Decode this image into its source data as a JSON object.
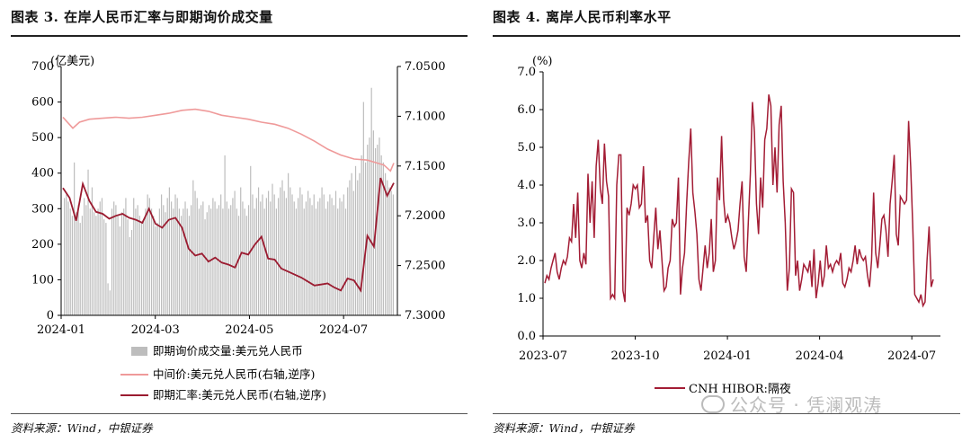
{
  "left": {
    "title": "图表 3.  在岸人民币汇率与即期询价成交量",
    "source": "资料来源：Wind，中银证券",
    "chart_data": {
      "type": "bar",
      "title": "在岸人民币汇率与即期询价成交量",
      "ylabel": "(亿美元)",
      "ylim": [
        0,
        700
      ],
      "y_ticks": [
        "0",
        "100",
        "200",
        "300",
        "400",
        "500",
        "600",
        "700"
      ],
      "y2lim": [
        7.05,
        7.3
      ],
      "y2_inverted": true,
      "y2_ticks": [
        "7.0500",
        "7.1000",
        "7.1500",
        "7.2000",
        "7.2500",
        "7.3000"
      ],
      "x_ticks": [
        "2024-01",
        "2024-03",
        "2024-05",
        "2024-07"
      ],
      "legend": [
        "即期询价成交量:美元兑人民币",
        "中间价:美元兑人民币(右轴,逆序)",
        "即期汇率:美元兑人民币(右轴,逆序)"
      ],
      "legend_position": "bottom",
      "colors": {
        "bars": "#bdbdbd",
        "mid": "#ef9a9a",
        "spot": "#9b1b30"
      },
      "series": [
        {
          "name": "即期询价成交量:美元兑人民币",
          "type": "bar",
          "axis": "left",
          "values": [
            330,
            340,
            320,
            300,
            280,
            430,
            290,
            310,
            260,
            280,
            330,
            310,
            410,
            300,
            360,
            290,
            280,
            300,
            320,
            330,
            270,
            260,
            90,
            70,
            300,
            320,
            310,
            280,
            250,
            290,
            300,
            330,
            270,
            220,
            240,
            330,
            300,
            310,
            280,
            260,
            270,
            300,
            340,
            330,
            300,
            280,
            250,
            260,
            300,
            340,
            310,
            290,
            330,
            360,
            320,
            300,
            340,
            330,
            300,
            280,
            300,
            320,
            300,
            280,
            310,
            380,
            350,
            330,
            300,
            310,
            320,
            270,
            290,
            310,
            300,
            330,
            320,
            300,
            310,
            340,
            300,
            450,
            320,
            300,
            310,
            330,
            350,
            300,
            280,
            360,
            320,
            300,
            280,
            310,
            420,
            340,
            300,
            330,
            360,
            320,
            340,
            300,
            330,
            350,
            320,
            370,
            340,
            300,
            330,
            360,
            380,
            350,
            330,
            400,
            360,
            340,
            320,
            300,
            330,
            360,
            340,
            300,
            320,
            350,
            330,
            310,
            340,
            300,
            320,
            330,
            360,
            340,
            300,
            320,
            340,
            330,
            310,
            350,
            300,
            330,
            320,
            340,
            300,
            360,
            380,
            400,
            350,
            420,
            380,
            400,
            450,
            600,
            430,
            480,
            500,
            640,
            520,
            470,
            480,
            500,
            450,
            430,
            400,
            380,
            360,
            350,
            340
          ]
        },
        {
          "name": "中间价:美元兑人民币(右轴,逆序)",
          "type": "line",
          "axis": "right",
          "x": [
            0,
            0.03,
            0.05,
            0.08,
            0.12,
            0.16,
            0.2,
            0.24,
            0.28,
            0.32,
            0.36,
            0.4,
            0.44,
            0.48,
            0.52,
            0.56,
            0.6,
            0.64,
            0.68,
            0.72,
            0.76,
            0.8,
            0.84,
            0.88,
            0.92,
            0.95,
            0.97,
            0.99,
            1.0
          ],
          "values": [
            7.101,
            7.112,
            7.106,
            7.103,
            7.102,
            7.101,
            7.102,
            7.101,
            7.099,
            7.097,
            7.094,
            7.093,
            7.095,
            7.099,
            7.101,
            7.103,
            7.106,
            7.108,
            7.112,
            7.118,
            7.125,
            7.133,
            7.139,
            7.143,
            7.144,
            7.147,
            7.149,
            7.155,
            7.147
          ]
        },
        {
          "name": "即期汇率:美元兑人民币(右轴,逆序)",
          "type": "line",
          "axis": "right",
          "x": [
            0,
            0.02,
            0.04,
            0.06,
            0.08,
            0.1,
            0.12,
            0.14,
            0.16,
            0.18,
            0.2,
            0.22,
            0.24,
            0.26,
            0.28,
            0.3,
            0.32,
            0.34,
            0.36,
            0.38,
            0.4,
            0.42,
            0.44,
            0.46,
            0.48,
            0.5,
            0.52,
            0.54,
            0.56,
            0.58,
            0.6,
            0.62,
            0.64,
            0.66,
            0.68,
            0.7,
            0.72,
            0.74,
            0.76,
            0.78,
            0.8,
            0.82,
            0.84,
            0.86,
            0.88,
            0.9,
            0.92,
            0.94,
            0.96,
            0.98,
            1.0
          ],
          "values": [
            7.172,
            7.182,
            7.205,
            7.168,
            7.185,
            7.196,
            7.198,
            7.203,
            7.2,
            7.198,
            7.202,
            7.204,
            7.207,
            7.193,
            7.208,
            7.212,
            7.204,
            7.202,
            7.212,
            7.233,
            7.24,
            7.238,
            7.246,
            7.242,
            7.247,
            7.249,
            7.252,
            7.237,
            7.239,
            7.229,
            7.221,
            7.243,
            7.244,
            7.253,
            7.256,
            7.259,
            7.262,
            7.266,
            7.27,
            7.269,
            7.268,
            7.272,
            7.275,
            7.263,
            7.265,
            7.275,
            7.22,
            7.231,
            7.162,
            7.18,
            7.167
          ]
        }
      ]
    }
  },
  "right": {
    "title": "图表 4.  离岸人民币利率水平",
    "source": "资料来源：Wind，中银证券",
    "watermark": "公众号 · 凭澜观涛",
    "chart_data": {
      "type": "line",
      "title": "离岸人民币利率水平",
      "ylabel": "(%)",
      "ylim": [
        0,
        7
      ],
      "y_ticks": [
        "0.0",
        "1.0",
        "2.0",
        "3.0",
        "4.0",
        "5.0",
        "6.0",
        "7.0"
      ],
      "x_ticks": [
        "2023-07",
        "2023-10",
        "2024-01",
        "2024-04",
        "2024-07"
      ],
      "legend": [
        "CNH HIBOR:隔夜"
      ],
      "legend_position": "bottom",
      "colors": {
        "line": "#a31d35"
      },
      "series": [
        {
          "name": "CNH HIBOR:隔夜",
          "values": [
            1.4,
            1.6,
            1.5,
            1.8,
            2.0,
            2.2,
            1.7,
            1.5,
            1.8,
            2.0,
            1.9,
            2.1,
            2.6,
            2.5,
            3.5,
            2.6,
            3.8,
            2.0,
            1.8,
            2.2,
            1.9,
            4.3,
            3.0,
            4.1,
            2.6,
            4.5,
            5.2,
            3.9,
            3.5,
            5.1,
            4.1,
            3.7,
            1.0,
            1.1,
            1.0,
            4.0,
            4.8,
            4.8,
            1.2,
            0.9,
            3.4,
            3.2,
            3.5,
            4.0,
            3.9,
            4.0,
            3.4,
            3.5,
            4.5,
            3.0,
            3.2,
            2.0,
            1.8,
            2.6,
            3.4,
            2.3,
            2.8,
            2.0,
            1.2,
            1.3,
            1.8,
            2.0,
            3.1,
            2.9,
            3.0,
            4.2,
            1.1,
            1.8,
            2.2,
            3.5,
            4.6,
            5.5,
            3.8,
            3.3,
            2.7,
            1.5,
            1.2,
            1.8,
            2.4,
            1.8,
            2.2,
            3.1,
            1.7,
            2.0,
            4.2,
            3.6,
            5.3,
            3.6,
            3.0,
            3.2,
            3.0,
            2.6,
            2.3,
            2.5,
            2.8,
            3.5,
            4.1,
            2.1,
            1.7,
            3.0,
            4.3,
            6.2,
            5.4,
            3.5,
            2.7,
            4.2,
            3.4,
            5.2,
            5.5,
            6.4,
            6.1,
            4.0,
            5.0,
            3.8,
            5.6,
            6.1,
            4.1,
            3.0,
            1.2,
            1.8,
            3.9,
            3.8,
            1.6,
            2.0,
            1.2,
            1.5,
            1.9,
            1.8,
            1.7,
            2.0,
            1.3,
            2.3,
            1.0,
            1.4,
            2.0,
            1.3,
            1.6,
            2.4,
            1.8,
            1.9,
            1.7,
            1.9,
            2.0,
            1.9,
            2.2,
            1.4,
            1.3,
            1.5,
            1.8,
            1.7,
            2.0,
            2.4,
            1.9,
            2.3,
            2.1,
            2.0,
            2.1,
            1.6,
            1.3,
            2.0,
            3.8,
            2.2,
            1.8,
            2.4,
            3.1,
            3.2,
            2.8,
            2.1,
            3.5,
            4.1,
            4.8,
            2.7,
            2.4,
            3.7,
            3.6,
            3.5,
            3.6,
            5.7,
            4.5,
            3.0,
            1.1,
            1.0,
            0.9,
            1.1,
            0.8,
            0.9,
            2.0,
            2.9,
            1.3,
            1.5
          ]
        }
      ]
    }
  }
}
